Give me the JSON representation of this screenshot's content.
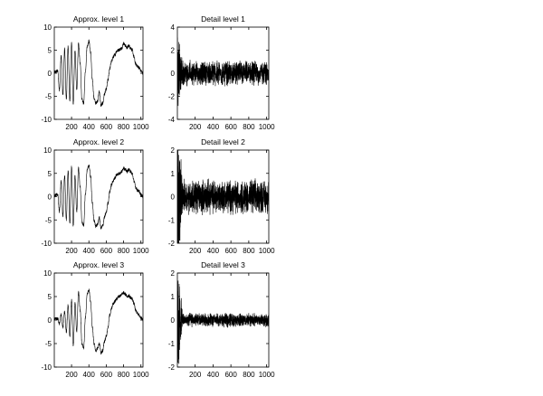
{
  "chart_data": [
    {
      "type": "line",
      "title": "Approx. level 1",
      "xlim": [
        1,
        1024
      ],
      "ylim": [
        -10,
        10
      ],
      "xticks": [
        "200",
        "400",
        "600",
        "800",
        "1000"
      ],
      "yticks": [
        "10",
        "5",
        "0",
        "-5",
        "-10"
      ],
      "series": [
        {
          "x": [
            1,
            40,
            60,
            80,
            100,
            120,
            140,
            160,
            180,
            200,
            220,
            240,
            260,
            280,
            300,
            320,
            340,
            360,
            380,
            400,
            420,
            440,
            460,
            480,
            500,
            520,
            540,
            560,
            580,
            600,
            620,
            640,
            660,
            680,
            700,
            720,
            740,
            760,
            780,
            800,
            820,
            840,
            860,
            880,
            900,
            920,
            940,
            960,
            980,
            1000,
            1024
          ],
          "y": [
            0.2,
            0.5,
            -3.6,
            3.8,
            -4.8,
            5.2,
            -5.6,
            6.0,
            -6.0,
            6.6,
            -6.6,
            4.8,
            -3.6,
            6.5,
            2.0,
            -5.8,
            -6.5,
            0.5,
            5.8,
            7.0,
            4.5,
            -1.5,
            -5.5,
            -6.5,
            -6.0,
            -4.0,
            -7.0,
            -6.5,
            -4.5,
            -3.5,
            -1.5,
            1.0,
            2.5,
            3.5,
            4.0,
            4.8,
            5.0,
            5.2,
            5.5,
            6.5,
            6.0,
            5.5,
            6.0,
            5.5,
            5.0,
            3.5,
            2.0,
            1.5,
            1.2,
            0.5,
            0.0
          ]
        }
      ]
    },
    {
      "type": "line",
      "title": "Detail level 1",
      "xlim": [
        1,
        1024
      ],
      "ylim": [
        -4,
        4
      ],
      "xticks": [
        "200",
        "400",
        "600",
        "800",
        "1000"
      ],
      "yticks": [
        "4",
        "2",
        "0",
        "-2",
        "-4"
      ],
      "series": [
        {
          "noise": {
            "amplitude": 0.8,
            "peak": 2.2
          }
        }
      ]
    },
    {
      "type": "line",
      "title": "Approx. level 2",
      "xlim": [
        1,
        1024
      ],
      "ylim": [
        -10,
        10
      ],
      "xticks": [
        "200",
        "400",
        "600",
        "800",
        "1000"
      ],
      "yticks": [
        "10",
        "5",
        "0",
        "-5",
        "-10"
      ],
      "series": [
        {
          "x": [
            1,
            40,
            60,
            80,
            100,
            120,
            140,
            160,
            180,
            200,
            220,
            240,
            260,
            280,
            300,
            320,
            340,
            360,
            380,
            400,
            420,
            440,
            460,
            480,
            500,
            520,
            540,
            560,
            580,
            600,
            620,
            640,
            660,
            680,
            700,
            720,
            740,
            760,
            780,
            800,
            820,
            840,
            860,
            880,
            900,
            920,
            940,
            960,
            980,
            1000,
            1024
          ],
          "y": [
            0.2,
            0.5,
            -3.2,
            3.4,
            -4.2,
            4.6,
            -5.0,
            5.6,
            -5.6,
            6.4,
            -6.4,
            4.5,
            -3.3,
            6.2,
            2.0,
            -5.5,
            -6.2,
            0.5,
            5.6,
            6.8,
            4.3,
            -1.4,
            -5.2,
            -6.3,
            -6.0,
            -4.5,
            -6.8,
            -6.2,
            -4.4,
            -3.4,
            -1.4,
            1.0,
            2.5,
            3.4,
            4.0,
            4.7,
            4.9,
            5.1,
            5.4,
            6.2,
            5.8,
            5.4,
            5.8,
            5.4,
            4.9,
            3.4,
            2.0,
            1.4,
            1.1,
            0.4,
            0.0
          ]
        }
      ]
    },
    {
      "type": "line",
      "title": "Detail level 2",
      "xlim": [
        1,
        1024
      ],
      "ylim": [
        -2,
        2
      ],
      "xticks": [
        "200",
        "400",
        "600",
        "800",
        "1000"
      ],
      "yticks": [
        "2",
        "1",
        "0",
        "-1",
        "-2"
      ],
      "series": [
        {
          "noise": {
            "amplitude": 0.55,
            "peak": 1.9
          }
        }
      ]
    },
    {
      "type": "line",
      "title": "Approx. level 3",
      "xlim": [
        1,
        1024
      ],
      "ylim": [
        -10,
        10
      ],
      "xticks": [
        "200",
        "400",
        "600",
        "800",
        "1000"
      ],
      "yticks": [
        "10",
        "5",
        "0",
        "-5",
        "-10"
      ],
      "series": [
        {
          "x": [
            1,
            40,
            60,
            80,
            100,
            120,
            140,
            160,
            180,
            200,
            220,
            240,
            260,
            280,
            300,
            320,
            340,
            360,
            380,
            400,
            420,
            440,
            460,
            480,
            500,
            520,
            540,
            560,
            580,
            600,
            620,
            640,
            660,
            680,
            700,
            720,
            740,
            760,
            780,
            800,
            820,
            840,
            860,
            880,
            900,
            920,
            940,
            960,
            980,
            1000,
            1024
          ],
          "y": [
            0.2,
            0.3,
            -0.8,
            1.2,
            -1.5,
            1.8,
            -2.5,
            3.2,
            -3.5,
            4.2,
            -5.5,
            3.5,
            -2.5,
            6.0,
            2.0,
            -5.0,
            -6.0,
            0.5,
            5.5,
            6.5,
            4.0,
            -1.5,
            -5.0,
            -6.5,
            -6.0,
            -5.0,
            -7.0,
            -6.5,
            -4.5,
            -3.5,
            -1.5,
            1.0,
            2.5,
            3.5,
            4.0,
            4.5,
            5.0,
            5.2,
            5.5,
            5.8,
            5.5,
            5.0,
            5.2,
            4.8,
            4.5,
            3.5,
            2.0,
            1.5,
            1.0,
            0.5,
            0.0
          ]
        }
      ]
    },
    {
      "type": "line",
      "title": "Detail level 3",
      "xlim": [
        1,
        1024
      ],
      "ylim": [
        -2,
        2
      ],
      "xticks": [
        "200",
        "400",
        "600",
        "800",
        "1000"
      ],
      "yticks": [
        "2",
        "1",
        "0",
        "-1",
        "-2"
      ],
      "series": [
        {
          "noise": {
            "amplitude": 0.22,
            "peak": 1.8
          }
        }
      ]
    }
  ]
}
